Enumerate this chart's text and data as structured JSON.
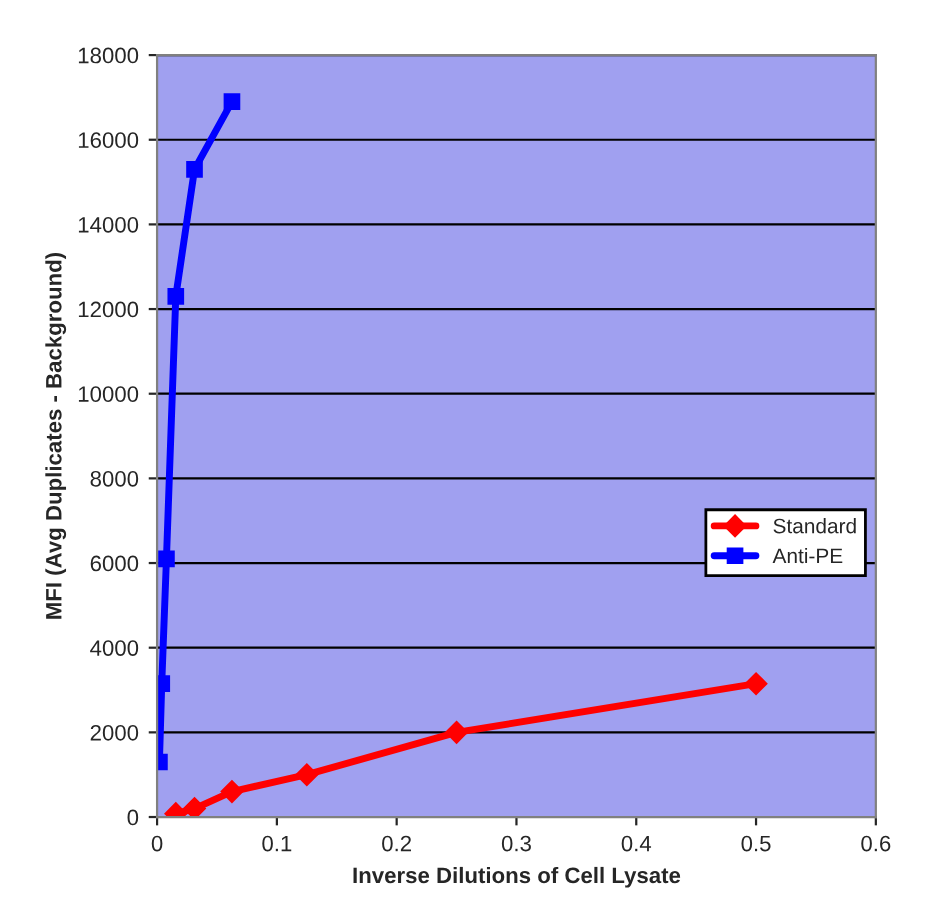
{
  "chart_data": {
    "type": "line",
    "xlabel": "Inverse Dilutions of Cell Lysate",
    "ylabel": "MFI (Avg Duplicates - Background)",
    "xlim": [
      0,
      0.6
    ],
    "xticks": [
      0,
      0.1,
      0.2,
      0.3,
      0.4,
      0.5,
      0.6
    ],
    "ylim": [
      0,
      18000
    ],
    "yticks": [
      0,
      2000,
      4000,
      6000,
      8000,
      10000,
      12000,
      14000,
      16000,
      18000
    ],
    "grid": "y",
    "legend": "right",
    "line_style": "solid",
    "series": [
      {
        "name": "Standard",
        "color": "#ff0000",
        "marker": "diamond",
        "x": [
          0.015625,
          0.03125,
          0.0625,
          0.125,
          0.25,
          0.5
        ],
        "values": [
          80,
          200,
          600,
          1000,
          2000,
          3150
        ]
      },
      {
        "name": "Anti-PE",
        "color": "#0000ff",
        "marker": "square",
        "x": [
          0.001953,
          0.003906,
          0.007813,
          0.015625,
          0.03125,
          0.0625
        ],
        "values": [
          1300,
          3150,
          6100,
          12300,
          15300,
          16900
        ]
      }
    ]
  }
}
